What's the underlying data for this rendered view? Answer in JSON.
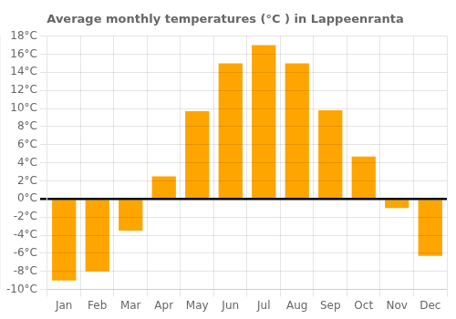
{
  "chart_data": {
    "type": "bar",
    "title": "Average monthly temperatures (°C ) in Lappeenranta",
    "categories": [
      "Jan",
      "Feb",
      "Mar",
      "Apr",
      "May",
      "Jun",
      "Jul",
      "Aug",
      "Sep",
      "Oct",
      "Nov",
      "Dec"
    ],
    "values": [
      -9,
      -8,
      -3.5,
      2.5,
      9.7,
      15,
      17,
      15,
      9.8,
      4.7,
      -1,
      -6.3
    ],
    "color": "#FFA500",
    "ylim": [
      -10,
      18
    ],
    "yticks": [
      {
        "value": -10,
        "label": "-10°C"
      },
      {
        "value": -8,
        "label": "-8°C"
      },
      {
        "value": -6,
        "label": "-6°C"
      },
      {
        "value": -4,
        "label": "-4°C"
      },
      {
        "value": -2,
        "label": "-2°C"
      },
      {
        "value": 0,
        "label": "0°C"
      },
      {
        "value": 2,
        "label": "2°C"
      },
      {
        "value": 4,
        "label": "4°C"
      },
      {
        "value": 6,
        "label": "6°C"
      },
      {
        "value": 8,
        "label": "8°C"
      },
      {
        "value": 10,
        "label": "10°C"
      },
      {
        "value": 12,
        "label": "12°C"
      },
      {
        "value": 14,
        "label": "14°C"
      },
      {
        "value": 16,
        "label": "16°C"
      },
      {
        "value": 18,
        "label": "18°C"
      }
    ],
    "grid": true
  }
}
